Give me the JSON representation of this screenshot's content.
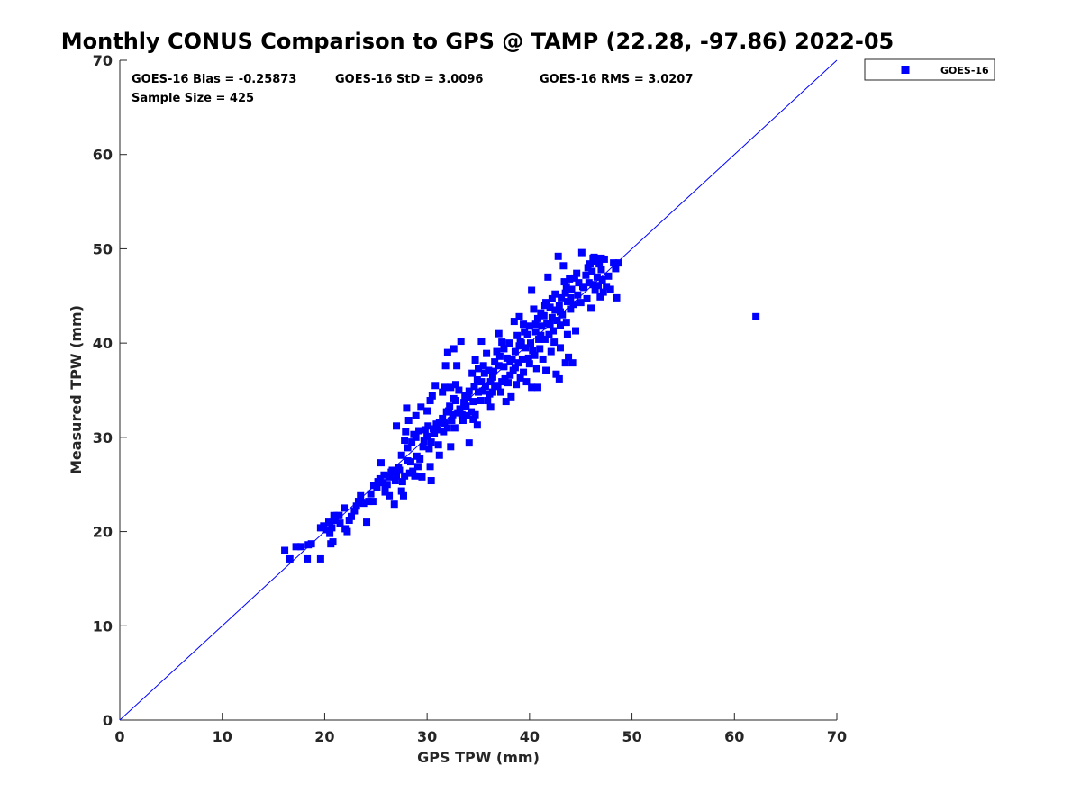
{
  "chart_data": {
    "type": "scatter",
    "title": "Monthly CONUS Comparison to GPS @ TAMP (22.28, -97.86) 2022-05",
    "xlabel": "GPS TPW (mm)",
    "ylabel": "Measured TPW (mm)",
    "xlim": [
      0,
      70
    ],
    "ylim": [
      0,
      70
    ],
    "x_ticks": [
      "0",
      "10",
      "20",
      "30",
      "40",
      "50",
      "60",
      "70"
    ],
    "y_ticks": [
      "0",
      "10",
      "20",
      "30",
      "40",
      "50",
      "60",
      "70"
    ],
    "grid": false,
    "legend_position": "outside-top-right",
    "reference_line": {
      "x": [
        0,
        70
      ],
      "y": [
        0,
        70
      ],
      "color": "#0000ff"
    },
    "stats": {
      "bias": "GOES-16 Bias = -0.25873",
      "std": "GOES-16 StD = 3.0096",
      "rms": "GOES-16 RMS = 3.0207",
      "sample_size": "Sample Size = 425"
    },
    "series": [
      {
        "name": "GOES-16",
        "color": "#0000ff",
        "marker": "square",
        "points": [
          [
            16.1,
            18.0
          ],
          [
            16.6,
            17.1
          ],
          [
            17.2,
            18.4
          ],
          [
            17.7,
            18.4
          ],
          [
            18.3,
            17.1
          ],
          [
            18.4,
            18.6
          ],
          [
            18.7,
            18.7
          ],
          [
            19.6,
            17.1
          ],
          [
            19.6,
            20.4
          ],
          [
            19.9,
            20.6
          ],
          [
            20.2,
            20.2
          ],
          [
            20.4,
            21.0
          ],
          [
            20.6,
            18.7
          ],
          [
            20.7,
            20.4
          ],
          [
            20.8,
            18.9
          ],
          [
            20.9,
            21.7
          ],
          [
            21.2,
            21.7
          ],
          [
            21.4,
            21.7
          ],
          [
            21.5,
            20.9
          ],
          [
            21.9,
            22.5
          ],
          [
            22.0,
            20.3
          ],
          [
            22.2,
            20.0
          ],
          [
            22.4,
            21.2
          ],
          [
            22.9,
            22.2
          ],
          [
            23.3,
            23.2
          ],
          [
            23.5,
            23.8
          ],
          [
            23.8,
            23.0
          ],
          [
            24.1,
            21.0
          ],
          [
            24.3,
            23.2
          ],
          [
            24.7,
            23.2
          ],
          [
            24.8,
            24.9
          ],
          [
            25.1,
            24.7
          ],
          [
            25.4,
            25.6
          ],
          [
            25.5,
            27.3
          ],
          [
            25.7,
            25.2
          ],
          [
            25.9,
            24.6
          ],
          [
            25.9,
            24.2
          ],
          [
            26.1,
            25.0
          ],
          [
            26.3,
            25.8
          ],
          [
            26.3,
            23.8
          ],
          [
            26.6,
            26.5
          ],
          [
            26.8,
            22.9
          ],
          [
            26.9,
            25.4
          ],
          [
            27.0,
            31.2
          ],
          [
            27.0,
            25.9
          ],
          [
            27.3,
            26.5
          ],
          [
            27.5,
            24.3
          ],
          [
            27.5,
            28.1
          ],
          [
            27.7,
            23.8
          ],
          [
            27.8,
            29.7
          ],
          [
            27.8,
            25.9
          ],
          [
            27.9,
            30.6
          ],
          [
            28.0,
            33.1
          ],
          [
            28.1,
            28.9
          ],
          [
            28.2,
            31.8
          ],
          [
            28.3,
            26.2
          ],
          [
            28.4,
            27.4
          ],
          [
            28.5,
            29.5
          ],
          [
            28.7,
            30.3
          ],
          [
            28.8,
            25.9
          ],
          [
            28.9,
            30.0
          ],
          [
            28.9,
            32.3
          ],
          [
            29.1,
            26.9
          ],
          [
            29.2,
            30.7
          ],
          [
            29.3,
            27.7
          ],
          [
            29.4,
            33.2
          ],
          [
            29.5,
            25.8
          ],
          [
            29.6,
            29.0
          ],
          [
            29.8,
            30.8
          ],
          [
            30.0,
            32.8
          ],
          [
            30.1,
            31.2
          ],
          [
            30.2,
            28.8
          ],
          [
            30.3,
            26.9
          ],
          [
            30.3,
            33.9
          ],
          [
            30.4,
            29.5
          ],
          [
            30.4,
            25.4
          ],
          [
            30.5,
            34.4
          ],
          [
            30.6,
            30.9
          ],
          [
            30.8,
            35.5
          ],
          [
            30.9,
            31.4
          ],
          [
            31.0,
            30.8
          ],
          [
            31.2,
            28.1
          ],
          [
            31.2,
            31.6
          ],
          [
            31.5,
            32.0
          ],
          [
            31.5,
            34.8
          ],
          [
            31.7,
            31.5
          ],
          [
            31.7,
            35.3
          ],
          [
            31.8,
            37.6
          ],
          [
            31.9,
            32.7
          ],
          [
            32.0,
            31.0
          ],
          [
            32.0,
            39.0
          ],
          [
            32.2,
            33.3
          ],
          [
            32.3,
            35.3
          ],
          [
            32.3,
            29.0
          ],
          [
            32.4,
            31.8
          ],
          [
            32.5,
            32.4
          ],
          [
            32.6,
            39.4
          ],
          [
            32.7,
            31.0
          ],
          [
            32.8,
            35.6
          ],
          [
            32.8,
            33.9
          ],
          [
            32.9,
            37.6
          ],
          [
            33.0,
            32.6
          ],
          [
            33.1,
            35.0
          ],
          [
            33.3,
            40.2
          ],
          [
            33.4,
            32.4
          ],
          [
            33.5,
            31.8
          ],
          [
            33.7,
            34.4
          ],
          [
            33.8,
            33.3
          ],
          [
            33.9,
            32.3
          ],
          [
            34.1,
            29.4
          ],
          [
            34.1,
            34.9
          ],
          [
            34.3,
            32.7
          ],
          [
            34.4,
            36.8
          ],
          [
            34.5,
            33.8
          ],
          [
            34.6,
            35.4
          ],
          [
            34.7,
            38.2
          ],
          [
            34.7,
            32.4
          ],
          [
            34.9,
            31.3
          ],
          [
            35.0,
            34.8
          ],
          [
            35.0,
            37.3
          ],
          [
            35.2,
            33.9
          ],
          [
            35.3,
            35.9
          ],
          [
            35.3,
            40.2
          ],
          [
            35.4,
            34.9
          ],
          [
            35.5,
            37.6
          ],
          [
            35.7,
            35.4
          ],
          [
            35.8,
            38.9
          ],
          [
            35.9,
            33.9
          ],
          [
            36.0,
            37.1
          ],
          [
            36.2,
            35.9
          ],
          [
            36.2,
            33.2
          ],
          [
            36.4,
            34.8
          ],
          [
            36.4,
            36.4
          ],
          [
            36.6,
            38.0
          ],
          [
            36.6,
            35.4
          ],
          [
            36.8,
            39.1
          ],
          [
            36.9,
            35.5
          ],
          [
            37.0,
            41.0
          ],
          [
            37.0,
            37.6
          ],
          [
            37.2,
            34.8
          ],
          [
            37.3,
            35.9
          ],
          [
            37.3,
            40.1
          ],
          [
            37.5,
            37.5
          ],
          [
            37.5,
            39.4
          ],
          [
            37.7,
            33.8
          ],
          [
            37.8,
            38.4
          ],
          [
            37.9,
            35.8
          ],
          [
            38.0,
            40.0
          ],
          [
            38.1,
            36.6
          ],
          [
            38.2,
            34.3
          ],
          [
            38.3,
            38.3
          ],
          [
            38.4,
            37.1
          ],
          [
            38.5,
            42.3
          ],
          [
            38.6,
            39.1
          ],
          [
            38.7,
            35.6
          ],
          [
            38.8,
            40.8
          ],
          [
            38.9,
            37.9
          ],
          [
            39.0,
            39.7
          ],
          [
            39.0,
            42.8
          ],
          [
            39.1,
            36.3
          ],
          [
            39.2,
            40.0
          ],
          [
            39.3,
            38.3
          ],
          [
            39.4,
            42.0
          ],
          [
            39.4,
            36.9
          ],
          [
            39.6,
            39.5
          ],
          [
            39.7,
            35.9
          ],
          [
            39.8,
            40.9
          ],
          [
            39.9,
            38.4
          ],
          [
            40.0,
            41.8
          ],
          [
            40.0,
            37.8
          ],
          [
            40.2,
            45.6
          ],
          [
            40.2,
            35.3
          ],
          [
            40.3,
            39.2
          ],
          [
            40.4,
            43.6
          ],
          [
            40.5,
            38.7
          ],
          [
            40.6,
            41.2
          ],
          [
            40.7,
            37.3
          ],
          [
            40.8,
            42.6
          ],
          [
            40.8,
            35.3
          ],
          [
            40.9,
            40.4
          ],
          [
            41.0,
            39.4
          ],
          [
            41.1,
            43.2
          ],
          [
            41.2,
            41.8
          ],
          [
            41.3,
            38.3
          ],
          [
            41.4,
            42.9
          ],
          [
            41.5,
            40.4
          ],
          [
            41.6,
            44.3
          ],
          [
            41.6,
            37.1
          ],
          [
            41.7,
            42.1
          ],
          [
            41.8,
            47.0
          ],
          [
            41.9,
            40.9
          ],
          [
            42.0,
            43.8
          ],
          [
            42.1,
            39.1
          ],
          [
            42.2,
            42.7
          ],
          [
            42.2,
            44.7
          ],
          [
            42.3,
            41.3
          ],
          [
            42.4,
            40.1
          ],
          [
            42.5,
            43.5
          ],
          [
            42.6,
            36.7
          ],
          [
            42.7,
            42.4
          ],
          [
            42.8,
            49.2
          ],
          [
            42.9,
            44.0
          ],
          [
            42.9,
            36.2
          ],
          [
            43.0,
            39.5
          ],
          [
            43.0,
            41.9
          ],
          [
            43.1,
            44.8
          ],
          [
            43.2,
            43.0
          ],
          [
            43.3,
            48.2
          ],
          [
            43.4,
            46.5
          ],
          [
            43.5,
            37.9
          ],
          [
            43.5,
            45.3
          ],
          [
            43.6,
            42.2
          ],
          [
            43.7,
            40.9
          ],
          [
            43.7,
            44.4
          ],
          [
            43.8,
            38.5
          ],
          [
            43.9,
            46.8
          ],
          [
            44.0,
            43.6
          ],
          [
            44.1,
            45.7
          ],
          [
            44.2,
            37.9
          ],
          [
            44.3,
            44.1
          ],
          [
            44.4,
            46.9
          ],
          [
            44.5,
            41.3
          ],
          [
            44.7,
            45.1
          ],
          [
            44.8,
            46.4
          ],
          [
            45.0,
            44.3
          ],
          [
            45.1,
            49.6
          ],
          [
            45.3,
            45.9
          ],
          [
            45.5,
            47.2
          ],
          [
            45.6,
            44.7
          ],
          [
            45.8,
            46.4
          ],
          [
            45.9,
            48.4
          ],
          [
            46.0,
            43.7
          ],
          [
            46.1,
            47.6
          ],
          [
            46.2,
            46.2
          ],
          [
            46.3,
            49.1
          ],
          [
            46.4,
            45.6
          ],
          [
            46.5,
            48.7
          ],
          [
            46.6,
            47.0
          ],
          [
            46.7,
            46.1
          ],
          [
            46.8,
            48.4
          ],
          [
            46.9,
            44.9
          ],
          [
            47.0,
            47.8
          ],
          [
            47.1,
            46.7
          ],
          [
            47.2,
            45.4
          ],
          [
            47.3,
            48.9
          ],
          [
            47.5,
            46.0
          ],
          [
            47.7,
            47.1
          ],
          [
            47.9,
            45.7
          ],
          [
            48.2,
            48.5
          ],
          [
            48.4,
            47.9
          ],
          [
            48.5,
            44.8
          ],
          [
            48.7,
            48.5
          ],
          [
            62.1,
            42.8
          ],
          [
            20.5,
            19.8
          ],
          [
            21.0,
            21.2
          ],
          [
            22.6,
            21.6
          ],
          [
            23.1,
            22.7
          ],
          [
            23.6,
            23.1
          ],
          [
            24.5,
            24.0
          ],
          [
            25.2,
            25.3
          ],
          [
            25.8,
            26.0
          ],
          [
            26.5,
            26.3
          ],
          [
            27.2,
            26.8
          ],
          [
            27.6,
            25.3
          ],
          [
            28.1,
            27.5
          ],
          [
            28.6,
            26.4
          ],
          [
            29.0,
            28.0
          ],
          [
            29.7,
            29.6
          ],
          [
            30.0,
            30.1
          ],
          [
            30.7,
            30.4
          ],
          [
            31.1,
            29.2
          ],
          [
            31.6,
            30.6
          ],
          [
            32.1,
            32.8
          ],
          [
            32.6,
            34.1
          ],
          [
            33.2,
            33.0
          ],
          [
            33.6,
            33.7
          ],
          [
            34.0,
            34.2
          ],
          [
            34.5,
            31.9
          ],
          [
            34.9,
            36.1
          ],
          [
            35.6,
            36.8
          ],
          [
            36.1,
            34.6
          ],
          [
            36.5,
            37.0
          ],
          [
            37.1,
            38.6
          ],
          [
            37.6,
            36.2
          ],
          [
            38.1,
            38.0
          ],
          [
            38.6,
            37.4
          ],
          [
            39.1,
            40.2
          ],
          [
            39.5,
            41.2
          ],
          [
            40.1,
            40.0
          ],
          [
            40.6,
            42.0
          ],
          [
            41.1,
            40.8
          ],
          [
            41.5,
            44.0
          ],
          [
            42.0,
            42.0
          ],
          [
            42.5,
            45.2
          ],
          [
            43.0,
            43.3
          ],
          [
            43.6,
            46.0
          ],
          [
            44.0,
            44.8
          ],
          [
            44.6,
            47.4
          ],
          [
            45.2,
            46.0
          ],
          [
            45.7,
            48.0
          ],
          [
            46.2,
            49.0
          ],
          [
            46.7,
            48.9
          ],
          [
            47.0,
            49.0
          ]
        ]
      }
    ]
  }
}
